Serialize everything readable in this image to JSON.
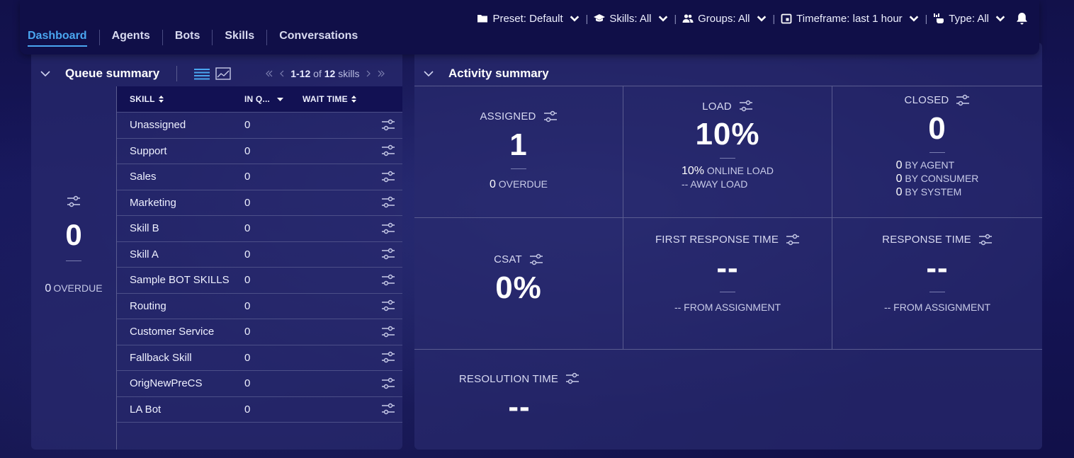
{
  "topbar": {
    "filters": [
      {
        "icon": "folder-icon",
        "label": "Preset: Default"
      },
      {
        "icon": "graduation-cap-icon",
        "label": "Skills: All"
      },
      {
        "icon": "users-icon",
        "label": "Groups: All"
      },
      {
        "icon": "calendar-icon",
        "label": "Timeframe: last 1 hour"
      },
      {
        "icon": "type-icon",
        "label": "Type: All"
      }
    ],
    "tabs": [
      "Dashboard",
      "Agents",
      "Bots",
      "Skills",
      "Conversations"
    ]
  },
  "queue": {
    "title": "Queue summary",
    "pager": {
      "range": "1-12",
      "of": "of",
      "total": "12",
      "unit": "skills"
    },
    "total": "0",
    "overdue_value": "0",
    "overdue_label": "OVERDUE",
    "columns": [
      "SKILL",
      "IN Q...",
      "WAIT TIME"
    ],
    "rows": [
      {
        "skill": "Unassigned",
        "inq": "0"
      },
      {
        "skill": "Support",
        "inq": "0"
      },
      {
        "skill": "Sales",
        "inq": "0"
      },
      {
        "skill": "Marketing",
        "inq": "0"
      },
      {
        "skill": "Skill B",
        "inq": "0"
      },
      {
        "skill": "Skill A",
        "inq": "0"
      },
      {
        "skill": "Sample BOT SKILLS",
        "inq": "0"
      },
      {
        "skill": "Routing",
        "inq": "0"
      },
      {
        "skill": "Customer Service",
        "inq": "0"
      },
      {
        "skill": "Fallback Skill",
        "inq": "0"
      },
      {
        "skill": "OrigNewPreCS",
        "inq": "0"
      },
      {
        "skill": "LA Bot",
        "inq": "0"
      }
    ]
  },
  "activity": {
    "title": "Activity summary",
    "assigned": {
      "label": "ASSIGNED",
      "value": "1",
      "sub_value": "0",
      "sub_label": "OVERDUE"
    },
    "load": {
      "label": "LOAD",
      "value": "10%",
      "online_value": "10%",
      "online_label": "ONLINE LOAD",
      "away_value": "--",
      "away_label": "AWAY LOAD"
    },
    "closed": {
      "label": "CLOSED",
      "value": "0",
      "by_agent_value": "0",
      "by_agent_label": "BY AGENT",
      "by_consumer_value": "0",
      "by_consumer_label": "BY CONSUMER",
      "by_system_value": "0",
      "by_system_label": "BY SYSTEM"
    },
    "csat": {
      "label": "CSAT",
      "value": "0%"
    },
    "first_response": {
      "label": "FIRST RESPONSE TIME",
      "value": "--",
      "sub_value": "--",
      "sub_label": "FROM ASSIGNMENT"
    },
    "response": {
      "label": "RESPONSE TIME",
      "value": "--",
      "sub_value": "--",
      "sub_label": "FROM ASSIGNMENT"
    },
    "resolution": {
      "label": "RESOLUTION TIME",
      "value": "--"
    }
  },
  "colors": {
    "accent": "#4aa6f0",
    "background": "#0d0c3c",
    "panel": "#282a6e"
  }
}
